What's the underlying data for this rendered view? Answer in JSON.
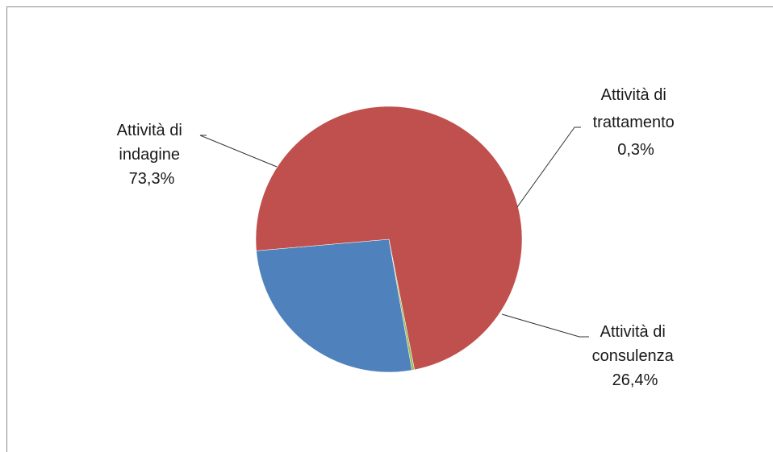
{
  "chart_data": {
    "type": "pie",
    "title": "",
    "slices": [
      {
        "label_lines": [
          "Attività di",
          "consulenza"
        ],
        "pct_text": "26,4%",
        "value": 26.4,
        "color": "#4f81bd"
      },
      {
        "label_lines": [
          "Attività di",
          "indagine"
        ],
        "pct_text": "73,3%",
        "value": 73.3,
        "color": "#c0504d"
      },
      {
        "label_lines": [
          "Attività di",
          "trattamento"
        ],
        "pct_text": "0,3%",
        "value": 0.3,
        "color": "#9bbb59"
      }
    ],
    "legend": "none",
    "data_labels": "outside with leader lines"
  }
}
